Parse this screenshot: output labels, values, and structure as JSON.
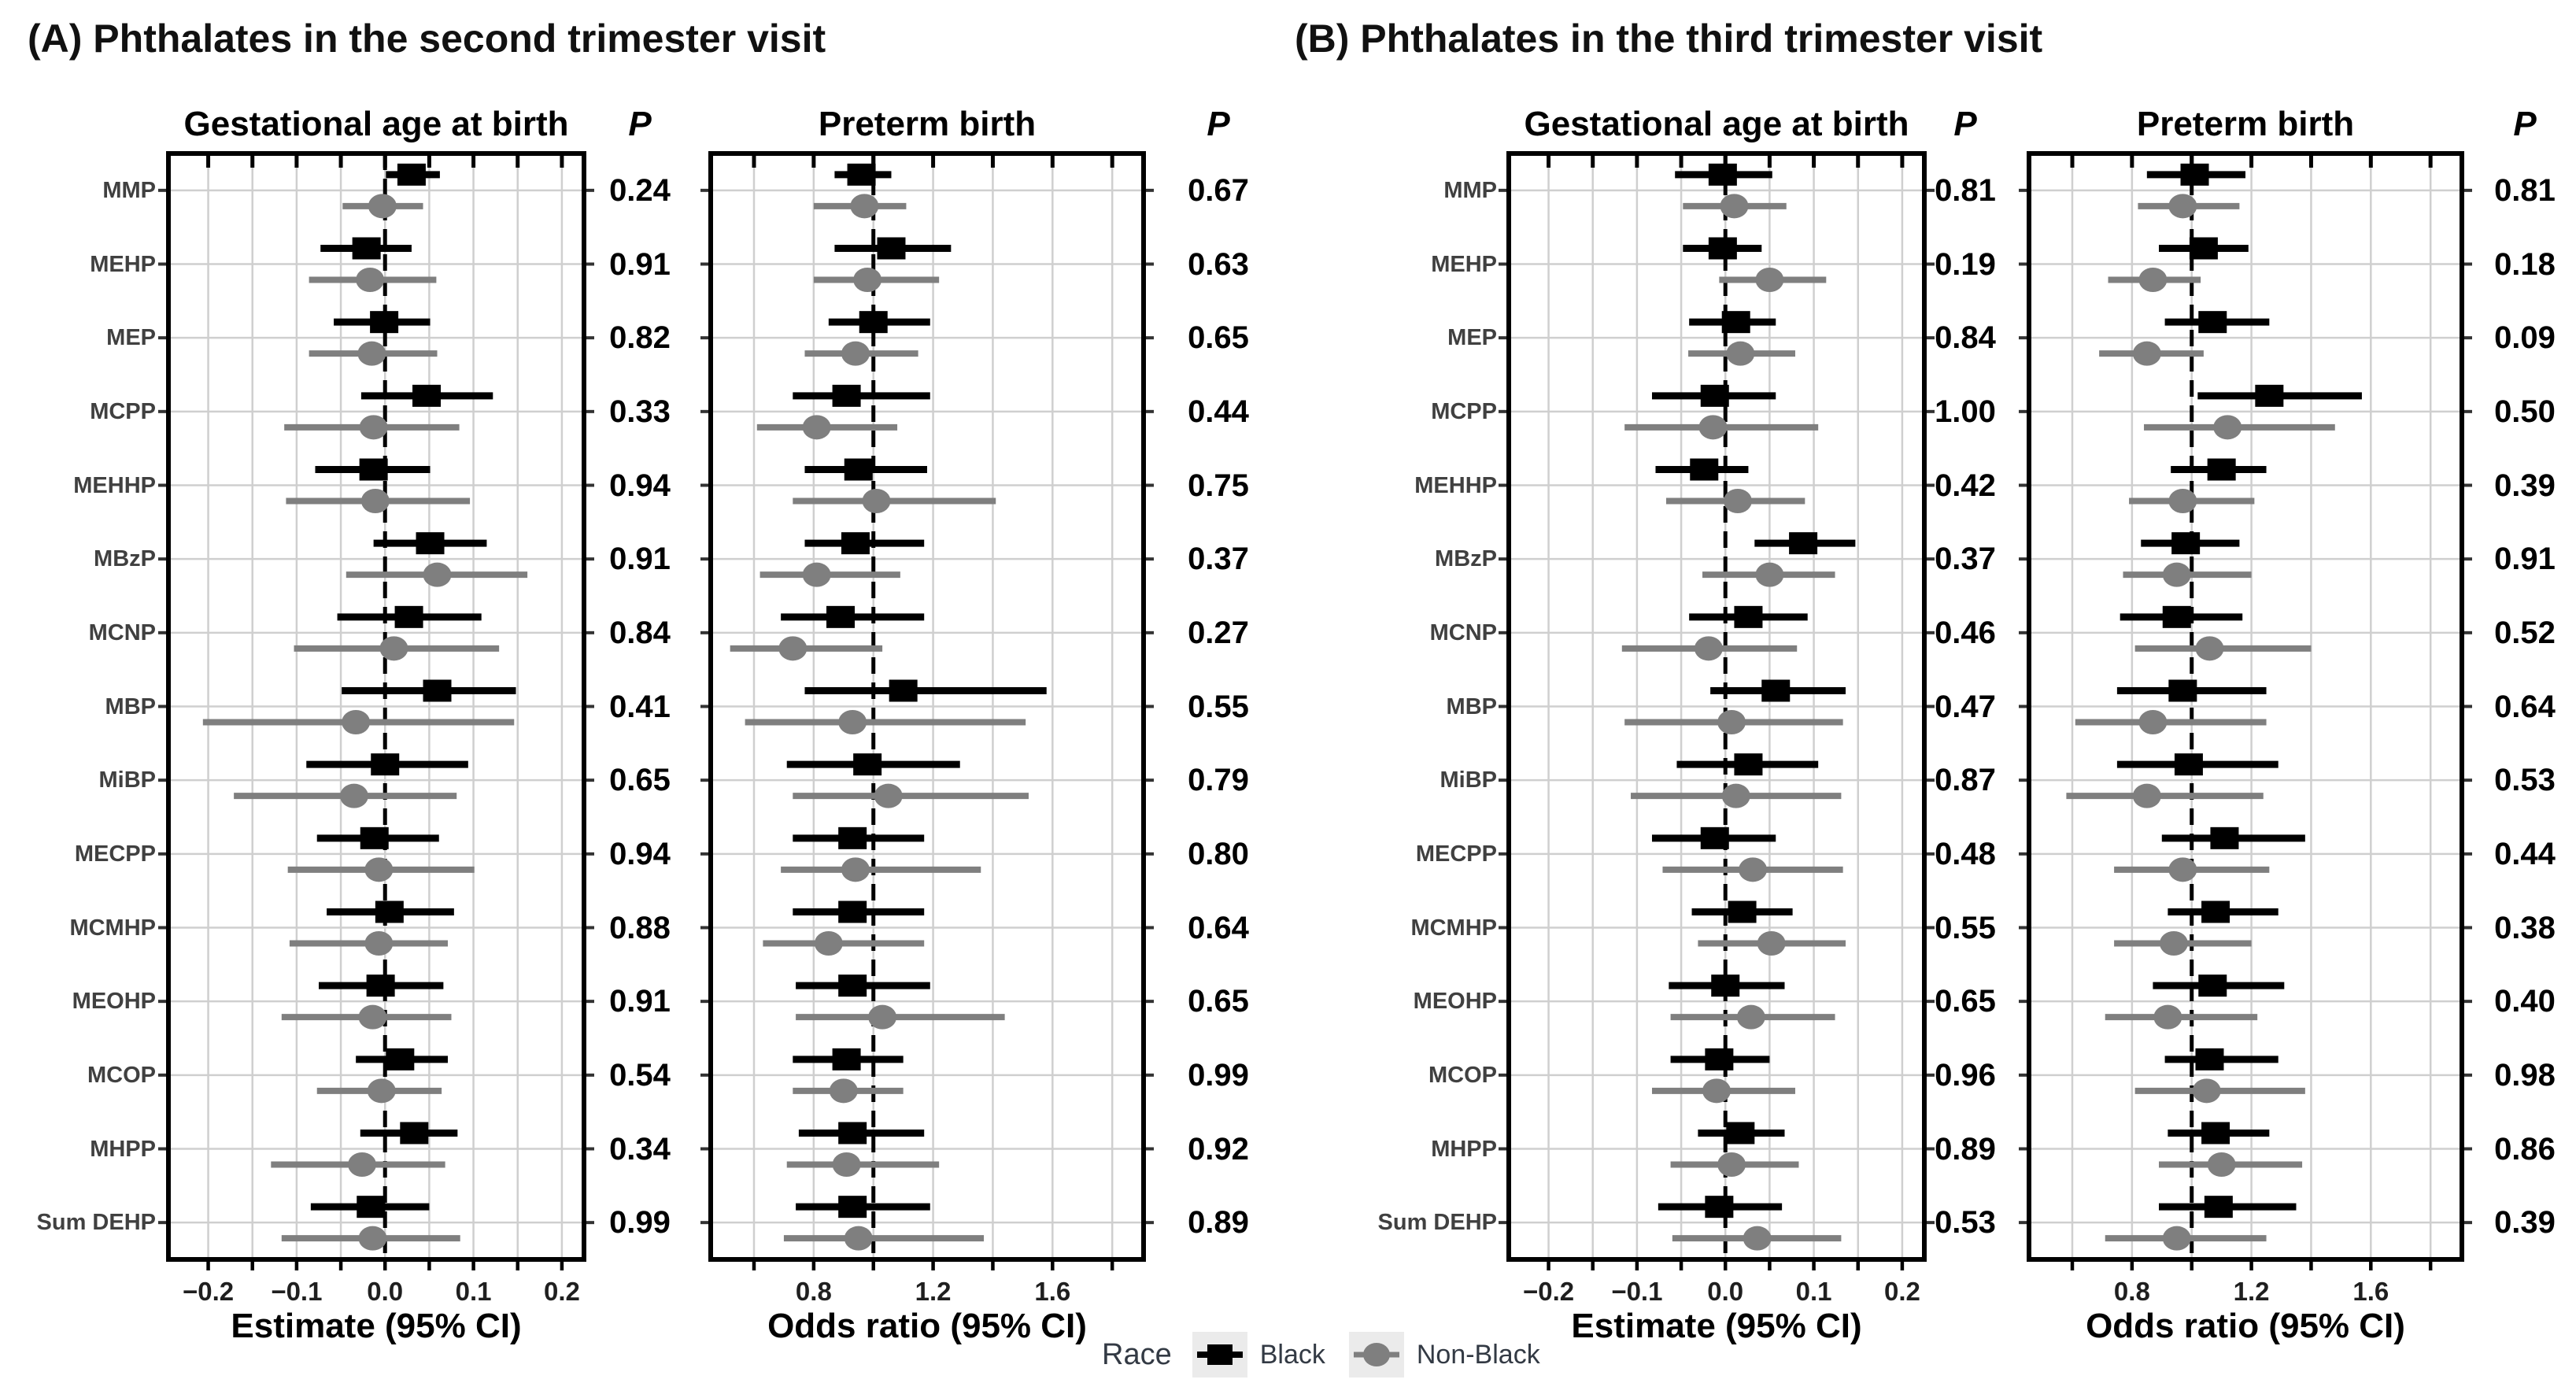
{
  "figure": {
    "panels": [
      {
        "label": "A",
        "title": "(A) Phthalates in the second trimester visit"
      },
      {
        "label": "B",
        "title": "(B) Phthalates in the third trimester visit"
      }
    ],
    "legend": {
      "label": "Race",
      "position": "bottom",
      "items": [
        {
          "label": "Black",
          "shape": "square",
          "color": "#000000"
        },
        {
          "label": "Non-Black",
          "shape": "circle",
          "color": "#7f7f7f"
        }
      ]
    }
  },
  "chart_data": [
    {
      "id": "panel-a-gestational-age",
      "panel": "A",
      "type": "scatter",
      "subtype": "forest-plot",
      "title": "Gestational age at birth",
      "p_label": "P",
      "xlabel": "Estimate (95% CI)",
      "xlim": [
        -0.245,
        0.225
      ],
      "xticks": [
        -0.2,
        -0.1,
        0.0,
        0.1,
        0.2
      ],
      "xtick_labels": [
        "−0.2",
        "−0.1",
        "0.0",
        "0.1",
        "0.2"
      ],
      "xminor": [
        -0.15,
        -0.05,
        0.05,
        0.15
      ],
      "refline": 0,
      "grid": true,
      "categories": [
        "MMP",
        "MEHP",
        "MEP",
        "MCPP",
        "MEHHP",
        "MBzP",
        "MCNP",
        "MBP",
        "MiBP",
        "MECPP",
        "MCMHP",
        "MEOHP",
        "MCOP",
        "MHPP",
        "Sum DEHP"
      ],
      "series": [
        {
          "name": "Black",
          "shape": "square",
          "color": "#000000",
          "points": [
            [
              0.03,
              0.001,
              0.062
            ],
            [
              -0.021,
              -0.073,
              0.03
            ],
            [
              -0.001,
              -0.058,
              0.051
            ],
            [
              0.047,
              -0.027,
              0.122
            ],
            [
              -0.013,
              -0.079,
              0.051
            ],
            [
              0.051,
              -0.013,
              0.115
            ],
            [
              0.027,
              -0.054,
              0.109
            ],
            [
              0.059,
              -0.049,
              0.148
            ],
            [
              0.0,
              -0.089,
              0.094
            ],
            [
              -0.012,
              -0.077,
              0.061
            ],
            [
              0.005,
              -0.066,
              0.078
            ],
            [
              -0.005,
              -0.075,
              0.066
            ],
            [
              0.017,
              -0.033,
              0.071
            ],
            [
              0.033,
              -0.028,
              0.082
            ],
            [
              -0.016,
              -0.084,
              0.05
            ]
          ]
        },
        {
          "name": "Non-Black",
          "shape": "circle",
          "color": "#7f7f7f",
          "points": [
            [
              -0.003,
              -0.048,
              0.043
            ],
            [
              -0.017,
              -0.086,
              0.058
            ],
            [
              -0.015,
              -0.086,
              0.059
            ],
            [
              -0.013,
              -0.114,
              0.084
            ],
            [
              -0.011,
              -0.112,
              0.096
            ],
            [
              0.059,
              -0.044,
              0.161
            ],
            [
              0.01,
              -0.103,
              0.129
            ],
            [
              -0.033,
              -0.206,
              0.146
            ],
            [
              -0.035,
              -0.171,
              0.081
            ],
            [
              -0.007,
              -0.11,
              0.101
            ],
            [
              -0.007,
              -0.108,
              0.071
            ],
            [
              -0.014,
              -0.117,
              0.075
            ],
            [
              -0.004,
              -0.077,
              0.064
            ],
            [
              -0.026,
              -0.129,
              0.068
            ],
            [
              -0.014,
              -0.117,
              0.085
            ]
          ]
        }
      ],
      "p_values": [
        "0.24",
        "0.91",
        "0.82",
        "0.33",
        "0.94",
        "0.91",
        "0.84",
        "0.41",
        "0.65",
        "0.94",
        "0.88",
        "0.91",
        "0.54",
        "0.34",
        "0.99"
      ]
    },
    {
      "id": "panel-a-preterm-birth",
      "panel": "A",
      "type": "scatter",
      "subtype": "forest-plot",
      "title": "Preterm birth",
      "p_label": "P",
      "xlabel": "Odds ratio (95% CI)",
      "xlim": [
        0.455,
        1.905
      ],
      "xticks": [
        0.8,
        1.2,
        1.6
      ],
      "xtick_labels": [
        "0.8",
        "1.2",
        "1.6"
      ],
      "xminor": [
        0.6,
        1.0,
        1.4,
        1.8
      ],
      "refline": 1,
      "grid": true,
      "categories": [
        "MMP",
        "MEHP",
        "MEP",
        "MCPP",
        "MEHHP",
        "MBzP",
        "MCNP",
        "MBP",
        "MiBP",
        "MECPP",
        "MCMHP",
        "MEOHP",
        "MCOP",
        "MHPP",
        "Sum DEHP"
      ],
      "series": [
        {
          "name": "Black",
          "shape": "square",
          "color": "#000000",
          "points": [
            [
              0.96,
              0.87,
              1.06
            ],
            [
              1.06,
              0.87,
              1.26
            ],
            [
              1.0,
              0.85,
              1.19
            ],
            [
              0.91,
              0.73,
              1.19
            ],
            [
              0.95,
              0.77,
              1.18
            ],
            [
              0.94,
              0.77,
              1.17
            ],
            [
              0.89,
              0.69,
              1.17
            ],
            [
              1.1,
              0.77,
              1.58
            ],
            [
              0.98,
              0.71,
              1.29
            ],
            [
              0.93,
              0.73,
              1.17
            ],
            [
              0.93,
              0.73,
              1.17
            ],
            [
              0.93,
              0.74,
              1.19
            ],
            [
              0.91,
              0.73,
              1.1
            ],
            [
              0.93,
              0.75,
              1.17
            ],
            [
              0.93,
              0.74,
              1.19
            ]
          ]
        },
        {
          "name": "Non-Black",
          "shape": "circle",
          "color": "#7f7f7f",
          "points": [
            [
              0.97,
              0.8,
              1.11
            ],
            [
              0.98,
              0.8,
              1.22
            ],
            [
              0.94,
              0.77,
              1.15
            ],
            [
              0.81,
              0.61,
              1.08
            ],
            [
              1.01,
              0.73,
              1.41
            ],
            [
              0.81,
              0.62,
              1.09
            ],
            [
              0.73,
              0.52,
              1.03
            ],
            [
              0.93,
              0.57,
              1.51
            ],
            [
              1.05,
              0.73,
              1.52
            ],
            [
              0.94,
              0.69,
              1.36
            ],
            [
              0.85,
              0.63,
              1.17
            ],
            [
              1.03,
              0.74,
              1.44
            ],
            [
              0.9,
              0.73,
              1.1
            ],
            [
              0.91,
              0.71,
              1.22
            ],
            [
              0.95,
              0.7,
              1.37
            ]
          ]
        }
      ],
      "p_values": [
        "0.67",
        "0.63",
        "0.65",
        "0.44",
        "0.75",
        "0.37",
        "0.27",
        "0.55",
        "0.79",
        "0.80",
        "0.64",
        "0.65",
        "0.99",
        "0.92",
        "0.89"
      ]
    },
    {
      "id": "panel-b-gestational-age",
      "panel": "B",
      "type": "scatter",
      "subtype": "forest-plot",
      "title": "Gestational age at birth",
      "p_label": "P",
      "xlabel": "Estimate (95% CI)",
      "xlim": [
        -0.245,
        0.225
      ],
      "xticks": [
        -0.2,
        -0.1,
        0.0,
        0.1,
        0.2
      ],
      "xtick_labels": [
        "−0.2",
        "−0.1",
        "0.0",
        "0.1",
        "0.2"
      ],
      "xminor": [
        -0.15,
        -0.05,
        0.05,
        0.15
      ],
      "refline": 0,
      "grid": true,
      "categories": [
        "MMP",
        "MEHP",
        "MEP",
        "MCPP",
        "MEHHP",
        "MBzP",
        "MCNP",
        "MBP",
        "MiBP",
        "MECPP",
        "MCMHP",
        "MEOHP",
        "MCOP",
        "MHPP",
        "Sum DEHP"
      ],
      "series": [
        {
          "name": "Black",
          "shape": "square",
          "color": "#000000",
          "points": [
            [
              -0.003,
              -0.057,
              0.053
            ],
            [
              -0.003,
              -0.048,
              0.041
            ],
            [
              0.012,
              -0.041,
              0.057
            ],
            [
              -0.012,
              -0.083,
              0.057
            ],
            [
              -0.024,
              -0.079,
              0.026
            ],
            [
              0.088,
              0.033,
              0.147
            ],
            [
              0.026,
              -0.041,
              0.093
            ],
            [
              0.057,
              -0.017,
              0.136
            ],
            [
              0.026,
              -0.055,
              0.105
            ],
            [
              -0.012,
              -0.083,
              0.057
            ],
            [
              0.019,
              -0.038,
              0.076
            ],
            [
              0.0,
              -0.064,
              0.067
            ],
            [
              -0.007,
              -0.062,
              0.05
            ],
            [
              0.017,
              -0.031,
              0.067
            ],
            [
              -0.007,
              -0.076,
              0.064
            ]
          ]
        },
        {
          "name": "Non-Black",
          "shape": "circle",
          "color": "#7f7f7f",
          "points": [
            [
              0.01,
              -0.048,
              0.069
            ],
            [
              0.05,
              -0.007,
              0.114
            ],
            [
              0.017,
              -0.042,
              0.079
            ],
            [
              -0.014,
              -0.114,
              0.105
            ],
            [
              0.014,
              -0.067,
              0.09
            ],
            [
              0.05,
              -0.026,
              0.124
            ],
            [
              -0.019,
              -0.117,
              0.081
            ],
            [
              0.007,
              -0.114,
              0.133
            ],
            [
              0.012,
              -0.107,
              0.131
            ],
            [
              0.031,
              -0.071,
              0.133
            ],
            [
              0.052,
              -0.031,
              0.136
            ],
            [
              0.029,
              -0.062,
              0.124
            ],
            [
              -0.01,
              -0.083,
              0.079
            ],
            [
              0.007,
              -0.062,
              0.083
            ],
            [
              0.036,
              -0.06,
              0.131
            ]
          ]
        }
      ],
      "p_values": [
        "0.81",
        "0.19",
        "0.84",
        "1.00",
        "0.42",
        "0.37",
        "0.46",
        "0.47",
        "0.87",
        "0.48",
        "0.55",
        "0.65",
        "0.96",
        "0.89",
        "0.53"
      ]
    },
    {
      "id": "panel-b-preterm-birth",
      "panel": "B",
      "type": "scatter",
      "subtype": "forest-plot",
      "title": "Preterm birth",
      "p_label": "P",
      "xlabel": "Odds ratio (95% CI)",
      "xlim": [
        0.455,
        1.905
      ],
      "xticks": [
        0.8,
        1.2,
        1.6
      ],
      "xtick_labels": [
        "0.8",
        "1.2",
        "1.6"
      ],
      "xminor": [
        0.6,
        1.0,
        1.4,
        1.8
      ],
      "refline": 1,
      "grid": true,
      "categories": [
        "MMP",
        "MEHP",
        "MEP",
        "MCPP",
        "MEHHP",
        "MBzP",
        "MCNP",
        "MBP",
        "MiBP",
        "MECPP",
        "MCMHP",
        "MEOHP",
        "MCOP",
        "MHPP",
        "Sum DEHP"
      ],
      "series": [
        {
          "name": "Black",
          "shape": "square",
          "color": "#000000",
          "points": [
            [
              1.01,
              0.85,
              1.18
            ],
            [
              1.04,
              0.89,
              1.19
            ],
            [
              1.07,
              0.91,
              1.26
            ],
            [
              1.26,
              1.02,
              1.57
            ],
            [
              1.1,
              0.93,
              1.25
            ],
            [
              0.98,
              0.83,
              1.16
            ],
            [
              0.95,
              0.76,
              1.17
            ],
            [
              0.97,
              0.75,
              1.25
            ],
            [
              0.99,
              0.75,
              1.29
            ],
            [
              1.11,
              0.9,
              1.38
            ],
            [
              1.08,
              0.92,
              1.29
            ],
            [
              1.07,
              0.87,
              1.31
            ],
            [
              1.06,
              0.91,
              1.29
            ],
            [
              1.08,
              0.92,
              1.26
            ],
            [
              1.09,
              0.89,
              1.35
            ]
          ]
        },
        {
          "name": "Non-Black",
          "shape": "circle",
          "color": "#7f7f7f",
          "points": [
            [
              0.97,
              0.82,
              1.16
            ],
            [
              0.87,
              0.72,
              1.03
            ],
            [
              0.85,
              0.69,
              1.04
            ],
            [
              1.12,
              0.84,
              1.48
            ],
            [
              0.97,
              0.79,
              1.21
            ],
            [
              0.95,
              0.77,
              1.2
            ],
            [
              1.06,
              0.81,
              1.4
            ],
            [
              0.87,
              0.61,
              1.25
            ],
            [
              0.85,
              0.58,
              1.24
            ],
            [
              0.97,
              0.74,
              1.26
            ],
            [
              0.94,
              0.74,
              1.2
            ],
            [
              0.92,
              0.71,
              1.22
            ],
            [
              1.05,
              0.81,
              1.38
            ],
            [
              1.1,
              0.89,
              1.37
            ],
            [
              0.95,
              0.71,
              1.25
            ]
          ]
        }
      ],
      "p_values": [
        "0.81",
        "0.18",
        "0.09",
        "0.50",
        "0.39",
        "0.91",
        "0.52",
        "0.64",
        "0.53",
        "0.44",
        "0.38",
        "0.40",
        "0.98",
        "0.86",
        "0.39"
      ]
    }
  ]
}
